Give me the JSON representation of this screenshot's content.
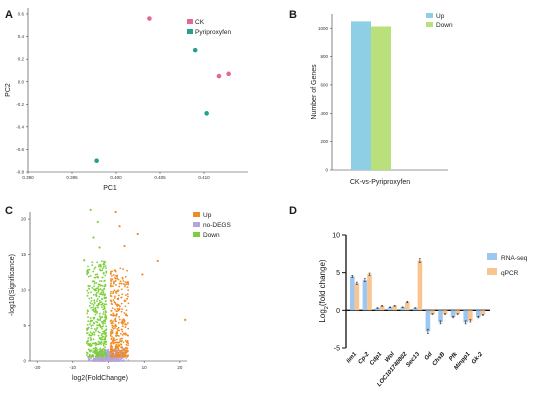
{
  "panels": {
    "A": "A",
    "B": "B",
    "C": "C",
    "D": "D"
  },
  "chart_data": [
    {
      "type": "scatter",
      "panel": "A",
      "xlabel": "PC1",
      "ylabel": "PC2",
      "xlim": [
        0.39,
        0.415
      ],
      "ylim": [
        -0.8,
        0.6
      ],
      "xticks": [
        0.39,
        0.395,
        0.4,
        0.405,
        0.41
      ],
      "xtick_labels": [
        "0.390",
        "0.395",
        "0.400",
        "0.405",
        "0.410"
      ],
      "yticks": [
        -0.8,
        -0.6,
        -0.4,
        -0.2,
        0.0,
        0.2,
        0.4,
        0.6
      ],
      "ytick_labels": [
        "-0.8",
        "-0.6",
        "-0.4",
        "-0.2",
        "0.0",
        "0.2",
        "0.4",
        "0.6"
      ],
      "legend_position": "top-right",
      "series": [
        {
          "name": "CK",
          "color": "#e5669b",
          "points": [
            [
              0.4038,
              0.56
            ],
            [
              0.4117,
              0.05
            ],
            [
              0.4128,
              0.07
            ]
          ]
        },
        {
          "name": "Pyriproxyfen",
          "color": "#26a08e",
          "points": [
            [
              0.409,
              0.28
            ],
            [
              0.4103,
              -0.28
            ],
            [
              0.3978,
              -0.7
            ]
          ]
        }
      ]
    },
    {
      "type": "bar",
      "panel": "B",
      "categories": [
        "CK-vs-Pyriproxyfen"
      ],
      "ylabel": "Number of Genes",
      "ylim": [
        0,
        1100
      ],
      "yticks": [
        0,
        200,
        400,
        600,
        800,
        1000
      ],
      "legend_position": "top-right",
      "series": [
        {
          "name": "Up",
          "color": "#8ecfe6",
          "values": [
            1048
          ]
        },
        {
          "name": "Down",
          "color": "#b9e07a",
          "values": [
            1012
          ]
        }
      ]
    },
    {
      "type": "scatter",
      "panel": "C",
      "xlabel": "log2(FoldChange)",
      "ylabel": "-log10(Significance)",
      "xlim": [
        -22,
        22
      ],
      "ylim": [
        0,
        21
      ],
      "xticks": [
        -20,
        -10,
        0,
        10,
        20
      ],
      "yticks": [
        0,
        5,
        10,
        15,
        20
      ],
      "legend_position": "top-right",
      "series": [
        {
          "name": "Up",
          "color": "#f08a24"
        },
        {
          "name": "no-DEGS",
          "color": "#b5a4d8"
        },
        {
          "name": "Down",
          "color": "#7ccf3a"
        }
      ],
      "outliers": [
        {
          "series": "Up",
          "x": 21.5,
          "y": 5.8
        },
        {
          "series": "Up",
          "x": 2.0,
          "y": 21.0
        },
        {
          "series": "Up",
          "x": 8.2,
          "y": 17.9
        },
        {
          "series": "Up",
          "x": 13.8,
          "y": 14.1
        },
        {
          "series": "Up",
          "x": 9.5,
          "y": 12.2
        },
        {
          "series": "Up",
          "x": 4.5,
          "y": 16.2
        },
        {
          "series": "Up",
          "x": 3.1,
          "y": 19.0
        },
        {
          "series": "Down",
          "x": -5.0,
          "y": 21.3
        },
        {
          "series": "Down",
          "x": -3.0,
          "y": 19.6
        },
        {
          "series": "Down",
          "x": -4.2,
          "y": 17.4
        },
        {
          "series": "Down",
          "x": -6.8,
          "y": 14.2
        },
        {
          "series": "Down",
          "x": -2.5,
          "y": 16.0
        }
      ]
    },
    {
      "type": "bar",
      "panel": "D",
      "categories": [
        "Iim1",
        "Cp-2",
        "Cdp1",
        "Wol",
        "LOC101740802",
        "Sec13",
        "Gd",
        "ChsB",
        "Pfk",
        "Minpp1",
        "Gk-2"
      ],
      "ylabel": "Log2(fold change)",
      "ylim": [
        -5,
        10
      ],
      "yticks": [
        -5,
        0,
        5,
        10
      ],
      "legend_position": "top-right",
      "series": [
        {
          "name": "RNA-seq",
          "color": "#9cc7f0",
          "values": [
            4.5,
            4.0,
            0.3,
            0.4,
            0.4,
            0.3,
            -2.8,
            -1.6,
            -0.9,
            -1.6,
            -0.9
          ],
          "errors": [
            0.15,
            0.2,
            0.05,
            0.05,
            0.05,
            0.05,
            0.3,
            0.2,
            0.1,
            0.2,
            0.1
          ]
        },
        {
          "name": "qPCR",
          "color": "#f8c491",
          "values": [
            3.6,
            4.8,
            0.6,
            0.6,
            1.1,
            6.6,
            -0.5,
            -0.5,
            -0.5,
            -1.4,
            -0.6
          ],
          "errors": [
            0.15,
            0.15,
            0.05,
            0.05,
            0.1,
            0.25,
            0.05,
            0.05,
            0.05,
            0.15,
            0.05
          ]
        }
      ]
    }
  ]
}
